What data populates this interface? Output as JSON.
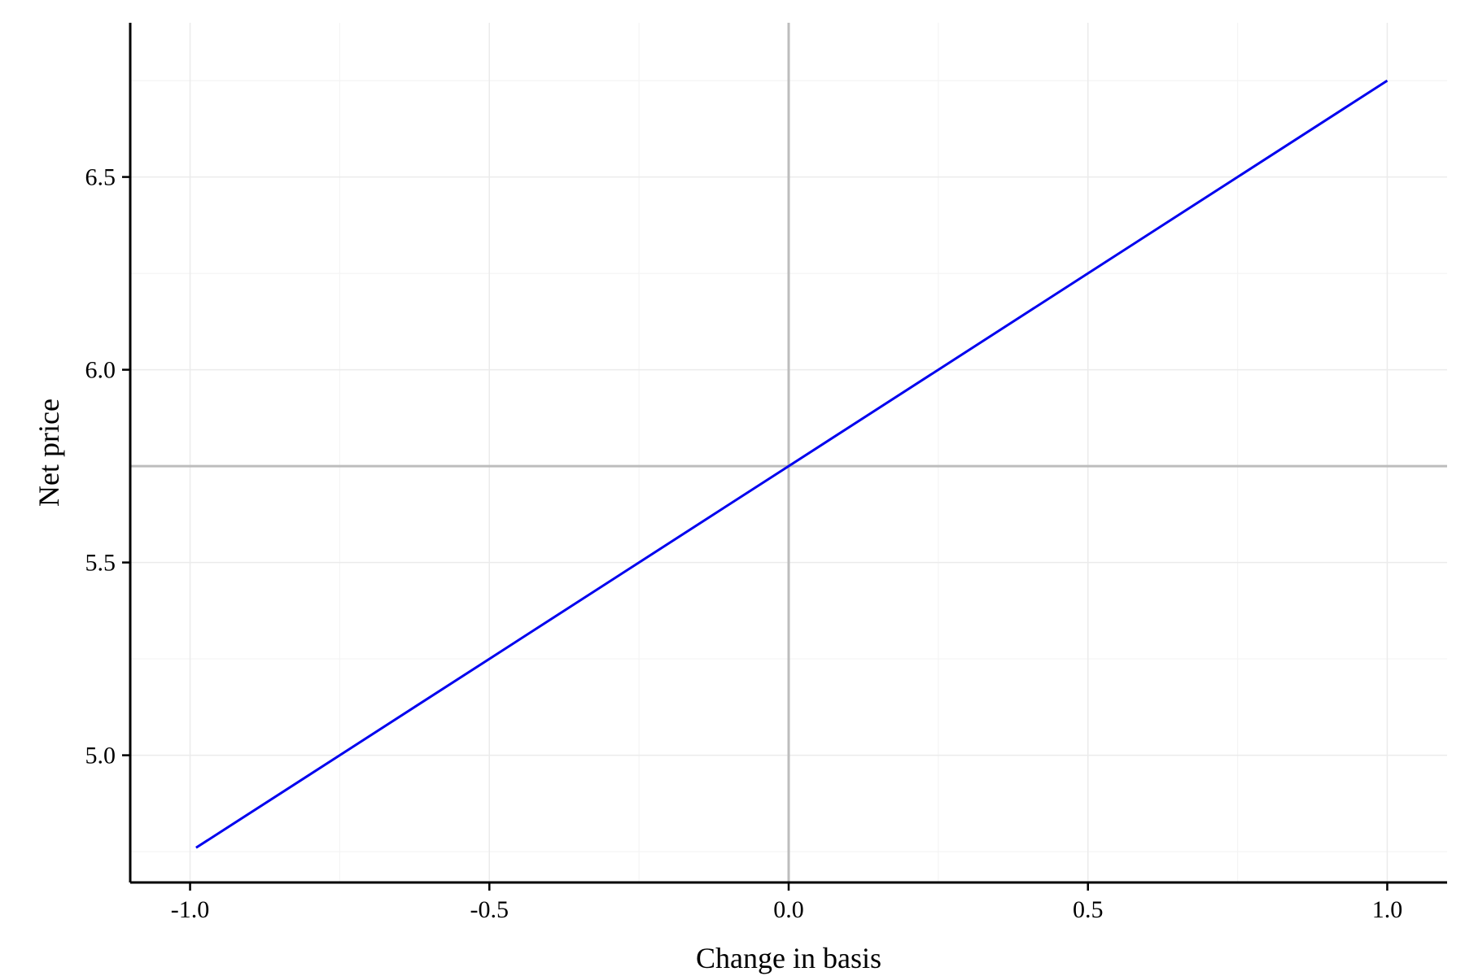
{
  "chart_data": {
    "type": "line",
    "title": "",
    "xlabel": "Change in basis",
    "ylabel": "Net price",
    "xlim": [
      -1.1,
      1.1
    ],
    "ylim": [
      4.67,
      6.9
    ],
    "x_ticks": [
      -1.0,
      -0.5,
      0.0,
      0.5,
      1.0
    ],
    "x_tick_labels": [
      "-1.0",
      "-0.5",
      "0.0",
      "0.5",
      "1.0"
    ],
    "y_ticks": [
      5.0,
      5.5,
      6.0,
      6.5
    ],
    "y_tick_labels": [
      "5.0",
      "5.5",
      "6.0",
      "6.5"
    ],
    "x_minor_ticks": [
      -0.75,
      -0.25,
      0.25,
      0.75
    ],
    "y_minor_ticks": [
      4.75,
      5.25,
      5.75,
      6.25,
      6.75
    ],
    "grid": true,
    "reference_lines": {
      "vertical_x": 0.0,
      "horizontal_y": 5.75
    },
    "series": [
      {
        "color": "#0000ee",
        "x": [
          -0.99,
          -0.75,
          -0.5,
          -0.25,
          0.0,
          0.25,
          0.5,
          0.75,
          1.0
        ],
        "y": [
          4.76,
          5.0,
          5.25,
          5.5,
          5.75,
          6.0,
          6.25,
          6.5,
          6.75
        ]
      }
    ]
  }
}
